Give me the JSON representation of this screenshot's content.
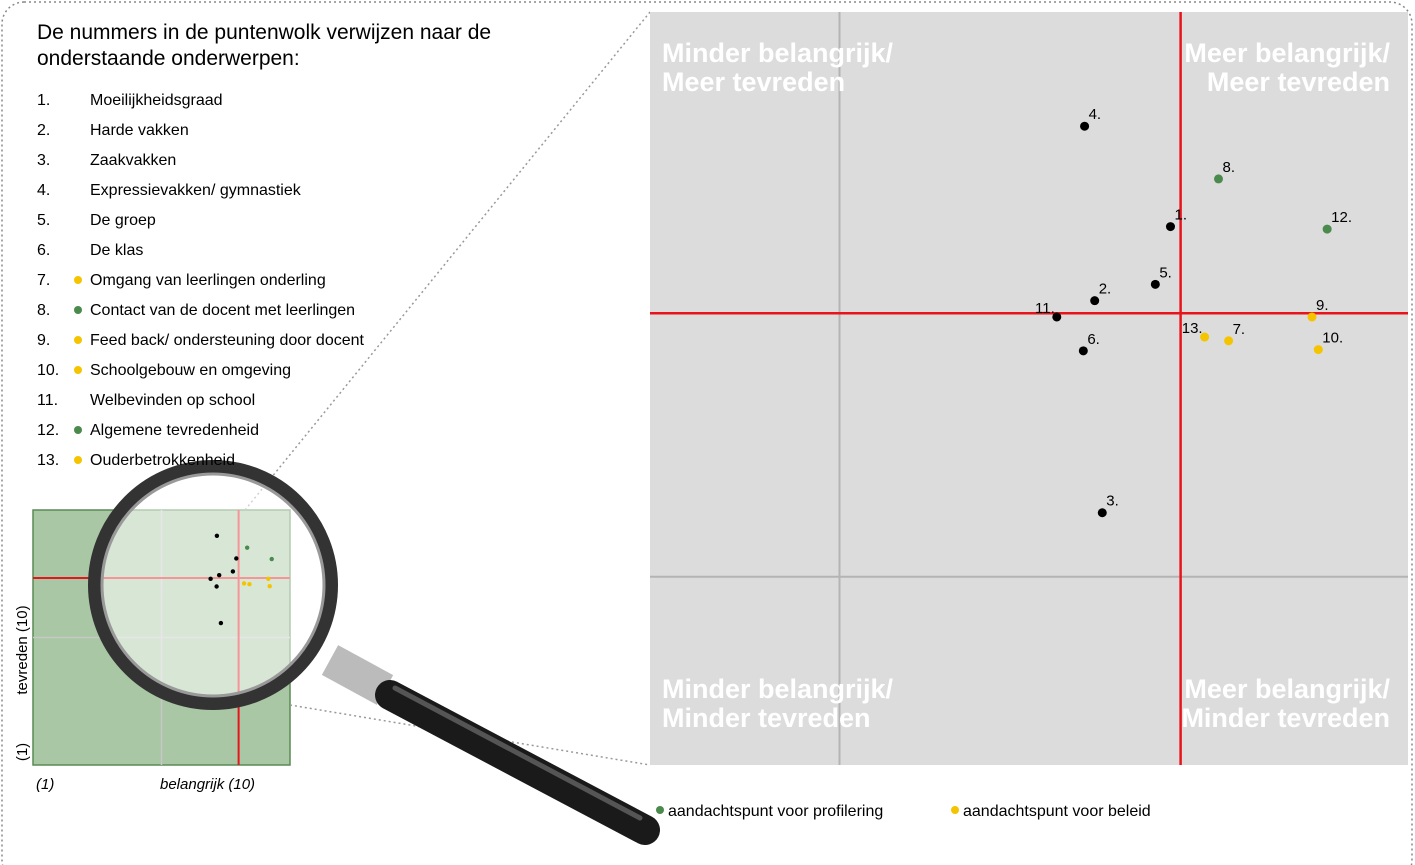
{
  "intro": "De nummers in de puntenwolk verwijzen naar de onderstaande onderwerpen:",
  "topics": [
    {
      "number": "1.",
      "text": "Moeilijkheidsgraad"
    },
    {
      "number": "2.",
      "text": "Harde vakken"
    },
    {
      "number": "3.",
      "text": "Zaakvakken"
    },
    {
      "number": "4.",
      "text": "Expressievakken/ gymnastiek"
    },
    {
      "number": "5.",
      "text": "De groep"
    },
    {
      "number": "6.",
      "text": "De klas"
    },
    {
      "number": "7.",
      "text": "Omgang van leerlingen onderling",
      "color": "#f5c400"
    },
    {
      "number": "8.",
      "text": "Contact van de docent met leerlingen",
      "color": "#4a8a4c"
    },
    {
      "number": "9.",
      "text": "Feed back/ ondersteuning door docent",
      "color": "#f5c400"
    },
    {
      "number": "10.",
      "text": "Schoolgebouw en omgeving",
      "color": "#f5c400"
    },
    {
      "number": "11.",
      "text": "Welbevinden op school"
    },
    {
      "number": "12.",
      "text": "Algemene tevredenheid",
      "color": "#4a8a4c"
    },
    {
      "number": "13.",
      "text": "Ouderbetrokkenheid",
      "color": "#f5c400"
    }
  ],
  "chart_data": {
    "type": "scatter",
    "xlim": [
      4,
      10
    ],
    "ylim": [
      4,
      10
    ],
    "grid_lines": {
      "x": 5.5,
      "y": 5.5
    },
    "split_lines": {
      "x": 8.2,
      "y": 7.6
    },
    "quadrant_labels": {
      "top_left": [
        "Minder belangrijk/",
        "Meer tevreden"
      ],
      "top_right": [
        "Meer belangrijk/",
        "Meer tevreden"
      ],
      "bottom_left": [
        "Minder belangrijk/",
        "Minder tevreden"
      ],
      "bottom_right": [
        "Meer belangrijk/",
        "Minder tevreden"
      ]
    },
    "points": [
      {
        "label": "1.",
        "x": 8.12,
        "y": 8.29,
        "color": "#000000"
      },
      {
        "label": "2.",
        "x": 7.52,
        "y": 7.7,
        "color": "#000000"
      },
      {
        "label": "3.",
        "x": 7.58,
        "y": 6.01,
        "color": "#000000"
      },
      {
        "label": "4.",
        "x": 7.44,
        "y": 9.09,
        "color": "#000000"
      },
      {
        "label": "5.",
        "x": 8.0,
        "y": 7.83,
        "color": "#000000"
      },
      {
        "label": "6.",
        "x": 7.43,
        "y": 7.3,
        "color": "#000000"
      },
      {
        "label": "7.",
        "x": 8.58,
        "y": 7.38,
        "color": "#f5c400"
      },
      {
        "label": "8.",
        "x": 8.5,
        "y": 8.67,
        "color": "#4a8a4c"
      },
      {
        "label": "9.",
        "x": 9.24,
        "y": 7.57,
        "color": "#f5c400"
      },
      {
        "label": "10.",
        "x": 9.29,
        "y": 7.31,
        "color": "#f5c400"
      },
      {
        "label": "11.",
        "x": 7.22,
        "y": 7.57,
        "color": "#000000"
      },
      {
        "label": "12.",
        "x": 9.36,
        "y": 8.27,
        "color": "#4a8a4c"
      },
      {
        "label": "13.",
        "x": 8.39,
        "y": 7.41,
        "color": "#f5c400"
      }
    ]
  },
  "overview": {
    "xlim": [
      1,
      10
    ],
    "ylim": [
      1,
      10
    ],
    "y_label_top": "tevreden (10)",
    "y_label_bottom": "(1)",
    "x_label_left": "(1)",
    "x_label_right": "belangrijk (10)"
  },
  "legend": [
    {
      "text": "aandachtspunt voor profilering",
      "color": "#4a8a4c"
    },
    {
      "text": "aandachtspunt voor beleid",
      "color": "#f5c400"
    }
  ]
}
